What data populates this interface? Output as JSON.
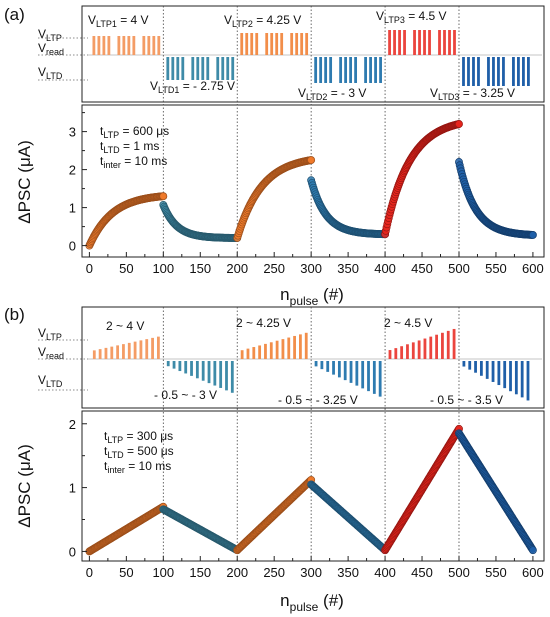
{
  "chart_data": [
    {
      "type": "scatter",
      "panel_label": "(a)",
      "pulse_labels": {
        "y_levels": [
          {
            "main": "V",
            "sub": "LTP"
          },
          {
            "main": "V",
            "sub": "read"
          },
          {
            "main": "V",
            "sub": "LTD"
          }
        ],
        "annotations": [
          {
            "main": "V",
            "sub": "LTP1",
            "suffix": " = 4 V"
          },
          {
            "main": "V",
            "sub": "LTP2",
            "suffix": " = 4.25 V"
          },
          {
            "main": "V",
            "sub": "LTP3",
            "suffix": " = 4.5 V"
          },
          {
            "main": "V",
            "sub": "LTD1",
            "suffix": " = - 2.75 V"
          },
          {
            "main": "V",
            "sub": "LTD2",
            "suffix": " = - 3 V"
          },
          {
            "main": "V",
            "sub": "LTD3",
            "suffix": " = - 3.25 V"
          }
        ]
      },
      "params": [
        {
          "main": "t",
          "sub": "LTP",
          "value": " = 600 μs"
        },
        {
          "main": "t",
          "sub": "LTD",
          "value": " = 1 ms"
        },
        {
          "main": "t",
          "sub": "inter",
          "value": " = 10 ms"
        }
      ],
      "ylabel": "ΔPSC (μA)",
      "xlabel_main": "n",
      "xlabel_sub": "pulse",
      "xlabel_suffix": " (#)",
      "xlim": [
        -10,
        615
      ],
      "ylim": [
        -0.3,
        3.7
      ],
      "xticks": [
        0,
        50,
        100,
        150,
        200,
        250,
        300,
        350,
        400,
        450,
        500,
        550,
        600
      ],
      "yticks": [
        0,
        1,
        2,
        3
      ],
      "grid": false,
      "series": [
        {
          "color": "#F07A2A",
          "x": [
            0,
            100
          ],
          "y0": 0.0,
          "y1": 1.3,
          "shape": "exp",
          "k": 3.2
        },
        {
          "color": "#3E8BA8",
          "x": [
            100,
            200
          ],
          "y0": 1.07,
          "y1": 0.2,
          "shape": "exp",
          "k": 5.5
        },
        {
          "color": "#F07A2A",
          "x": [
            200,
            300
          ],
          "y0": 0.2,
          "y1": 2.25,
          "shape": "exp",
          "k": 3.0
        },
        {
          "color": "#2E7BB0",
          "x": [
            300,
            400
          ],
          "y0": 1.72,
          "y1": 0.3,
          "shape": "exp",
          "k": 5.0
        },
        {
          "color": "#E8241C",
          "x": [
            400,
            500
          ],
          "y0": 0.3,
          "y1": 3.2,
          "shape": "exp",
          "k": 3.0
        },
        {
          "color": "#1F5FA8",
          "x": [
            500,
            600
          ],
          "y0": 2.2,
          "y1": 0.28,
          "shape": "exp",
          "k": 4.5
        }
      ]
    },
    {
      "type": "scatter",
      "panel_label": "(b)",
      "pulse_labels": {
        "y_levels": [
          {
            "main": "V",
            "sub": "LTP"
          },
          {
            "main": "V",
            "sub": "read"
          },
          {
            "main": "V",
            "sub": "LTD"
          }
        ],
        "annotations": [
          {
            "text": "2 ~ 4 V"
          },
          {
            "text": "2 ~ 4.25 V"
          },
          {
            "text": "2 ~ 4.5 V"
          },
          {
            "text": "- 0.5 ~ - 3 V"
          },
          {
            "text": "- 0.5 ~ - 3.25 V"
          },
          {
            "text": "- 0.5 ~ - 3.5 V"
          }
        ]
      },
      "params": [
        {
          "main": "t",
          "sub": "LTP",
          "value": " = 300 μs"
        },
        {
          "main": "t",
          "sub": "LTD",
          "value": " = 500 μs"
        },
        {
          "main": "t",
          "sub": "inter",
          "value": " = 10 ms"
        }
      ],
      "ylabel": "ΔPSC (μA)",
      "xlabel_main": "n",
      "xlabel_sub": "pulse",
      "xlabel_suffix": " (#)",
      "xlim": [
        -10,
        615
      ],
      "ylim": [
        -0.15,
        2.2
      ],
      "xticks": [
        0,
        50,
        100,
        150,
        200,
        250,
        300,
        350,
        400,
        450,
        500,
        550,
        600
      ],
      "yticks": [
        0,
        1,
        2
      ],
      "grid": false,
      "series": [
        {
          "color": "#F07A2A",
          "x": [
            0,
            100
          ],
          "y0": 0.0,
          "y1": 0.7,
          "shape": "linear"
        },
        {
          "color": "#3E8BA8",
          "x": [
            100,
            200
          ],
          "y0": 0.66,
          "y1": 0.02,
          "shape": "linear"
        },
        {
          "color": "#F07A2A",
          "x": [
            200,
            300
          ],
          "y0": 0.02,
          "y1": 1.12,
          "shape": "linear"
        },
        {
          "color": "#2E7BB0",
          "x": [
            300,
            400
          ],
          "y0": 1.05,
          "y1": 0.02,
          "shape": "linear"
        },
        {
          "color": "#E8241C",
          "x": [
            400,
            500
          ],
          "y0": 0.02,
          "y1": 1.92,
          "shape": "linear"
        },
        {
          "color": "#1F5FA8",
          "x": [
            500,
            600
          ],
          "y0": 1.85,
          "y1": 0.02,
          "shape": "linear"
        }
      ]
    }
  ]
}
